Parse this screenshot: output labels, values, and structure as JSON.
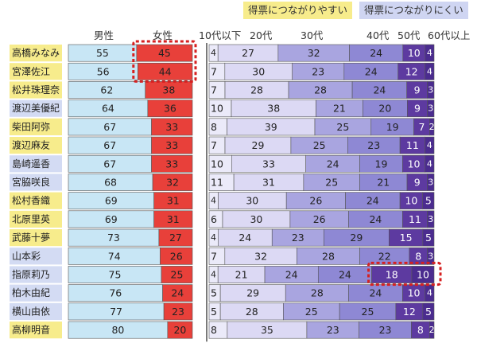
{
  "legend": {
    "yes_label": "得票につながりやすい",
    "no_label": "得票につながりにくい"
  },
  "headers": {
    "male": "男性",
    "female": "女性",
    "age_10s": "10代以下",
    "age_20s": "20代",
    "age_30s": "30代",
    "age_40s": "40代",
    "age_50s": "50代",
    "age_60s": "60代以上"
  },
  "colors": {
    "male": "#c8e6f5",
    "female": "#e8403a",
    "age_10s": "#ebeaf9",
    "age_20s": "#dcd9f4",
    "age_30s": "#a9a5e0",
    "age_40s": "#8e88d4",
    "age_50s": "#5d3aa0",
    "age_60s": "#4b2c8f",
    "name_yellow": "#f7ec8c",
    "name_blue": "#d3dbf3",
    "highlight": "#d62020"
  },
  "chart_data": [
    {
      "type": "bar",
      "stacked": true,
      "orientation": "horizontal",
      "categories": [
        "高橋みなみ",
        "宮澤佐江",
        "松井珠理奈",
        "渡辺美優紀",
        "柴田阿弥",
        "渡辺麻友",
        "島崎遥香",
        "宮脇咲良",
        "松村香織",
        "北原里英",
        "武藤十夢",
        "山本彩",
        "指原莉乃",
        "柏木由紀",
        "横山由依",
        "高柳明音"
      ],
      "category_group": [
        "yellow",
        "yellow",
        "yellow",
        "blue",
        "yellow",
        "yellow",
        "blue",
        "blue",
        "yellow",
        "yellow",
        "yellow",
        "blue",
        "blue",
        "blue",
        "blue",
        "yellow"
      ],
      "series": [
        {
          "name": "男性",
          "values": [
            55,
            56,
            62,
            64,
            67,
            67,
            67,
            68,
            69,
            69,
            73,
            74,
            75,
            76,
            77,
            80
          ]
        },
        {
          "name": "女性",
          "values": [
            45,
            44,
            38,
            36,
            33,
            33,
            33,
            32,
            31,
            31,
            27,
            26,
            25,
            24,
            23,
            20
          ]
        }
      ],
      "highlights": [
        {
          "series": "女性",
          "rows": [
            0,
            1
          ]
        }
      ]
    },
    {
      "type": "bar",
      "stacked": true,
      "orientation": "horizontal",
      "categories": [
        "高橋みなみ",
        "宮澤佐江",
        "松井珠理奈",
        "渡辺美優紀",
        "柴田阿弥",
        "渡辺麻友",
        "島崎遥香",
        "宮脇咲良",
        "松村香織",
        "北原里英",
        "武藤十夢",
        "山本彩",
        "指原莉乃",
        "柏木由紀",
        "横山由依",
        "高柳明音"
      ],
      "series": [
        {
          "name": "10代以下",
          "values": [
            4,
            7,
            7,
            10,
            8,
            7,
            10,
            11,
            4,
            6,
            4,
            7,
            4,
            5,
            5,
            8
          ]
        },
        {
          "name": "20代",
          "values": [
            27,
            30,
            28,
            38,
            39,
            29,
            33,
            31,
            30,
            30,
            24,
            32,
            21,
            29,
            28,
            35
          ]
        },
        {
          "name": "30代",
          "values": [
            32,
            23,
            28,
            21,
            25,
            25,
            24,
            25,
            26,
            26,
            23,
            28,
            24,
            28,
            25,
            23
          ]
        },
        {
          "name": "40代",
          "values": [
            24,
            24,
            24,
            20,
            19,
            23,
            19,
            21,
            24,
            24,
            29,
            22,
            24,
            24,
            25,
            23
          ]
        },
        {
          "name": "50代",
          "values": [
            10,
            12,
            9,
            9,
            7,
            11,
            10,
            9,
            10,
            11,
            15,
            8,
            18,
            10,
            12,
            8
          ]
        },
        {
          "name": "60代以上",
          "values": [
            4,
            4,
            3,
            3,
            2,
            4,
            4,
            3,
            5,
            3,
            5,
            3,
            10,
            4,
            5,
            2
          ]
        }
      ],
      "highlights": [
        {
          "series": "50代",
          "rows": [
            12
          ]
        },
        {
          "series": "60代以上",
          "rows": [
            12
          ]
        }
      ]
    }
  ]
}
